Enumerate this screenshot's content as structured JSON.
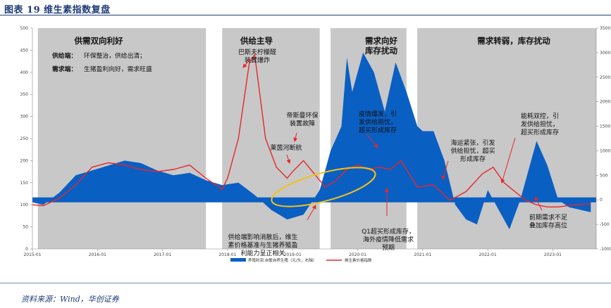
{
  "figure_title": "图表 19  维生素指数复盘",
  "source_note": "资料来源：Wind，华创证券",
  "colors": {
    "area": "#0a5fc2",
    "line": "#e8262a",
    "region": "#c8c8c8",
    "arrow": "#e8262a",
    "ellipse": "#f2c21a"
  },
  "chart_data": {
    "type": "area",
    "x_axis": {
      "min": "2015-01",
      "max": "2023-09",
      "ticks": [
        "2015-01",
        "2016-01",
        "2017-01",
        "2018-01",
        "2019-01",
        "2020-01",
        "2021-01",
        "2022-01",
        "2023-01"
      ]
    },
    "y_left": {
      "min": 0,
      "max": 500,
      "ticks": [
        0,
        50,
        100,
        150,
        200,
        250,
        300,
        350,
        400,
        450,
        500
      ]
    },
    "y_right": {
      "min": -1000,
      "max": 3500,
      "ticks": [
        -1000,
        -500,
        0,
        500,
        1000,
        1500,
        2000,
        2500,
        3000,
        3500
      ]
    },
    "series": [
      {
        "name": "养殖利润:自繁自养生猪（元/头，右轴）",
        "axis": "right",
        "chart_type": "area",
        "x": [
          "2015-01",
          "2015-03",
          "2015-06",
          "2015-09",
          "2015-12",
          "2016-03",
          "2016-06",
          "2016-09",
          "2016-12",
          "2017-03",
          "2017-06",
          "2017-09",
          "2017-12",
          "2018-03",
          "2018-06",
          "2018-09",
          "2018-12",
          "2019-03",
          "2019-06",
          "2019-08",
          "2019-10",
          "2019-11",
          "2019-12",
          "2020-02",
          "2020-04",
          "2020-06",
          "2020-08",
          "2020-10",
          "2020-12",
          "2021-01",
          "2021-03",
          "2021-05",
          "2021-07",
          "2021-09",
          "2021-11",
          "2022-01",
          "2022-03",
          "2022-05",
          "2022-07",
          "2022-09",
          "2022-10",
          "2022-12",
          "2023-02",
          "2023-04",
          "2023-06",
          "2023-08"
        ],
        "values": [
          -50,
          -100,
          150,
          500,
          600,
          700,
          800,
          750,
          600,
          500,
          550,
          400,
          300,
          350,
          100,
          -200,
          -400,
          -300,
          200,
          1000,
          1500,
          2900,
          2200,
          3000,
          2600,
          1800,
          2800,
          2200,
          1500,
          1400,
          1400,
          800,
          -100,
          -400,
          -500,
          200,
          -200,
          -600,
          0,
          800,
          1200,
          700,
          0,
          -150,
          -200,
          -250
        ]
      },
      {
        "name": "维生素价格指数",
        "axis": "left",
        "chart_type": "line",
        "x": [
          "2015-01",
          "2015-03",
          "2015-06",
          "2015-09",
          "2015-12",
          "2016-03",
          "2016-06",
          "2016-09",
          "2016-12",
          "2017-03",
          "2017-06",
          "2017-09",
          "2017-12",
          "2018-01",
          "2018-03",
          "2018-05",
          "2018-06",
          "2018-08",
          "2018-10",
          "2018-12",
          "2019-01",
          "2019-03",
          "2019-05",
          "2019-07",
          "2019-09",
          "2019-11",
          "2020-01",
          "2020-03",
          "2020-05",
          "2020-07",
          "2020-09",
          "2020-12",
          "2021-03",
          "2021-06",
          "2021-09",
          "2021-12",
          "2022-02",
          "2022-04",
          "2022-06",
          "2022-08",
          "2022-10",
          "2022-12",
          "2023-02",
          "2023-05",
          "2023-08"
        ],
        "values": [
          100,
          98,
          115,
          145,
          185,
          195,
          190,
          180,
          175,
          180,
          190,
          160,
          135,
          160,
          250,
          420,
          440,
          250,
          185,
          160,
          175,
          200,
          170,
          140,
          155,
          180,
          190,
          180,
          185,
          180,
          200,
          140,
          145,
          110,
          130,
          170,
          185,
          150,
          130,
          110,
          100,
          95,
          95,
          100,
          102
        ]
      }
    ],
    "regions": [
      {
        "start": "2015-02",
        "end": "2017-09",
        "label": "供需双向利好"
      },
      {
        "start": "2017-12",
        "end": "2019-06",
        "label": "供给主导"
      },
      {
        "start": "2019-08",
        "end": "2020-10",
        "label": "需求向好\n库存扰动"
      },
      {
        "start": "2020-12",
        "end": "2023-09",
        "label": "需求转弱，库存扰动"
      }
    ]
  },
  "region_notes": {
    "supply_label": "供给端：",
    "supply_text": "环保整治，供给出清；",
    "demand_label": "需求端：",
    "demand_text": "生猪盈利向好，需求旺盛"
  },
  "annotations": [
    "巴斯夫柠檬醛\n装置爆炸",
    "帝斯曼环保\n装置故障",
    "莱茵河断航",
    "疫情爆发，引\n发供给担忧，\n超买形成库存",
    "海运紧张，引发\n供给担忧，超买\n形成库存",
    "能耗双控，引\n发供给担忧，\n超买形成库存",
    "供给端影响消散后，维生\n素价格基准与生猪养殖盈\n利能力呈正相关",
    "Q1超买形成库存，\n海外疫情降低需求\n预期",
    "前期需求不足\n叠加库存高位"
  ],
  "legend": [
    {
      "label": "养殖利润:自繁自养生猪（元/头，右轴）"
    },
    {
      "label": "维生素价格指数"
    }
  ]
}
